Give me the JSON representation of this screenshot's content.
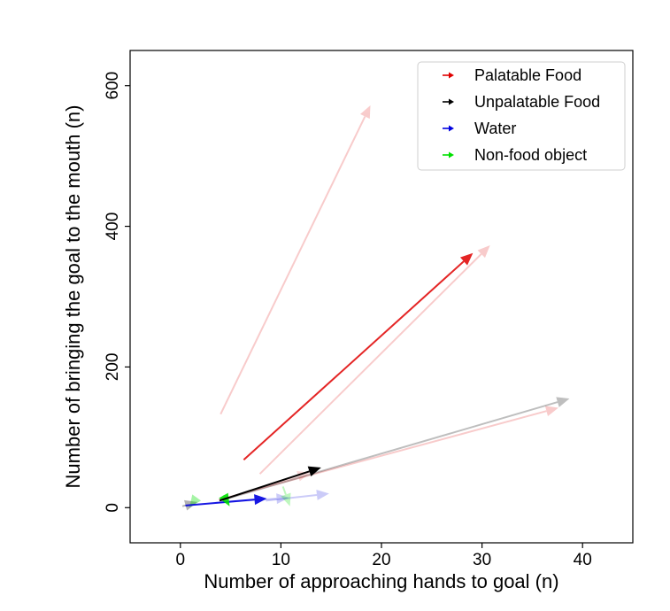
{
  "chart_data": {
    "type": "quiver",
    "xlabel": "Number of approaching hands to goal (n)",
    "ylabel": "Number of bringing the goal to the mouth (n)",
    "xlim": [
      -5,
      45
    ],
    "ylim": [
      -50,
      650
    ],
    "xticks": [
      0,
      10,
      20,
      30,
      40
    ],
    "yticks": [
      0,
      200,
      400,
      600
    ],
    "grid": false,
    "legend_position": "top-right",
    "series": [
      {
        "name": "Palatable Food",
        "color": "#e00000",
        "arrows": [
          {
            "x0": 6.3,
            "y0": 68,
            "x1": 29.1,
            "y1": 362,
            "alpha": 0.85
          },
          {
            "x0": 4.0,
            "y0": 133,
            "x1": 18.9,
            "y1": 572,
            "alpha": 0.2
          },
          {
            "x0": 7.9,
            "y0": 48,
            "x1": 30.8,
            "y1": 373,
            "alpha": 0.2
          },
          {
            "x0": 3.8,
            "y0": 11,
            "x1": 37.6,
            "y1": 142,
            "alpha": 0.2
          },
          {
            "x0": 3.9,
            "y0": 10,
            "x1": 12.9,
            "y1": 50,
            "alpha": 0.15
          }
        ]
      },
      {
        "name": "Unpalatable Food",
        "color": "#000000",
        "arrows": [
          {
            "x0": 3.9,
            "y0": 10,
            "x1": 14.0,
            "y1": 57,
            "alpha": 1.0
          },
          {
            "x0": 4.0,
            "y0": 10,
            "x1": 38.7,
            "y1": 155,
            "alpha": 0.25
          },
          {
            "x0": 0.2,
            "y0": 2,
            "x1": 1.7,
            "y1": 8,
            "alpha": 0.3
          }
        ]
      },
      {
        "name": "Water",
        "color": "#0000e0",
        "arrows": [
          {
            "x0": 0.5,
            "y0": 3,
            "x1": 8.6,
            "y1": 13,
            "alpha": 0.9
          },
          {
            "x0": 8.5,
            "y0": 10,
            "x1": 14.8,
            "y1": 20,
            "alpha": 0.2
          },
          {
            "x0": 3.5,
            "y0": 7,
            "x1": 10.8,
            "y1": 14,
            "alpha": 0.2
          }
        ]
      },
      {
        "name": "Non-food object",
        "color": "#00e000",
        "arrows": [
          {
            "x0": 4.5,
            "y0": 12,
            "x1": 4.9,
            "y1": 2,
            "alpha": 0.9
          },
          {
            "x0": 1.4,
            "y0": 10,
            "x1": 0.9,
            "y1": 0,
            "alpha": 0.35
          },
          {
            "x0": 10.2,
            "y0": 30,
            "x1": 10.9,
            "y1": 2,
            "alpha": 0.25
          }
        ]
      }
    ]
  }
}
